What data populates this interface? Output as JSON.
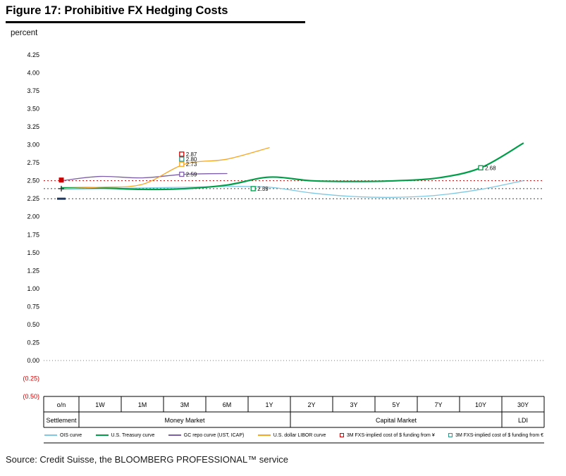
{
  "figure": {
    "source": "Source: Credit Suisse, the BLOOMBERG PROFESSIONAL™ service"
  },
  "chart_data": {
    "type": "line",
    "title": "Figure 17: Prohibitive FX Hedging Costs",
    "ylabel": "percent",
    "xlabel": "",
    "ylim": [
      -0.5,
      4.25
    ],
    "ytick_step": 0.25,
    "yticks": [
      "4.25",
      "4.00",
      "3.75",
      "3.50",
      "3.25",
      "3.00",
      "2.75",
      "2.50",
      "2.25",
      "2.00",
      "1.75",
      "1.50",
      "1.25",
      "1.00",
      "0.75",
      "0.50",
      "0.25",
      "0.00",
      "(0.25)",
      "(0.50)"
    ],
    "negative_tick_color": "#cc0000",
    "grid": "off",
    "legend_position": "bottom",
    "categories": [
      "o/n",
      "1W",
      "1M",
      "3M",
      "6M",
      "1Y",
      "2Y",
      "3Y",
      "5Y",
      "7Y",
      "10Y",
      "30Y"
    ],
    "category_groups": [
      {
        "label": "Settlement",
        "from": 0,
        "to": 0
      },
      {
        "label": "Money Market",
        "from": 1,
        "to": 5
      },
      {
        "label": "Capital Market",
        "from": 6,
        "to": 10
      },
      {
        "label": "LDI",
        "from": 11,
        "to": 11
      }
    ],
    "series": [
      {
        "name": "OIS curve",
        "color": "#7ec8e3",
        "width": 1.3,
        "values": [
          2.38,
          2.39,
          2.4,
          2.41,
          2.42,
          2.41,
          2.33,
          2.28,
          2.27,
          2.3,
          2.38,
          2.5
        ]
      },
      {
        "name": "U.S. Treasury curve",
        "color": "#009e49",
        "width": 2.2,
        "values": [
          2.4,
          2.4,
          2.38,
          2.39,
          2.44,
          2.55,
          2.5,
          2.49,
          2.5,
          2.54,
          2.68,
          3.02
        ]
      },
      {
        "name": "GC repo curve (UST, ICAP)",
        "color": "#7d5fa5",
        "width": 1.3,
        "values": [
          2.5,
          2.56,
          2.54,
          2.59,
          2.6,
          null,
          null,
          null,
          null,
          null,
          null,
          null
        ]
      },
      {
        "name": "U.S. dollar LIBOR curve",
        "color": "#f5a623",
        "width": 1.3,
        "values": [
          2.39,
          2.41,
          2.45,
          2.73,
          2.8,
          2.96,
          null,
          null,
          null,
          null,
          null,
          null
        ]
      }
    ],
    "reference_lines": [
      {
        "value": 2.5,
        "color": "#cc0000",
        "style": "dotted"
      },
      {
        "value": 2.39,
        "color": "#444444",
        "style": "dotted"
      },
      {
        "value": 2.25,
        "color": "#444444",
        "style": "dotted"
      }
    ],
    "point_markers": [
      {
        "label": "2.87",
        "value": 2.87,
        "x_index": 2.93,
        "color": "#cc0000"
      },
      {
        "label": "2.80",
        "value": 2.8,
        "x_index": 2.93,
        "color": "#2e9688"
      },
      {
        "label": "2.73",
        "value": 2.73,
        "x_index": 2.93,
        "color": "#f5a623"
      },
      {
        "label": "2.59",
        "value": 2.59,
        "x_index": 2.93,
        "color": "#7d5fa5"
      },
      {
        "label": "2.39",
        "value": 2.39,
        "x_index": 4.62,
        "color": "#009e49"
      },
      {
        "label": "2.68",
        "value": 2.68,
        "x_index": 10,
        "color": "#009e49"
      }
    ],
    "origin_markers": [
      {
        "value": 2.51,
        "color": "#cc0000",
        "shape": "square"
      },
      {
        "value": 2.39,
        "color": "#333333",
        "shape": "plus"
      },
      {
        "value": 2.25,
        "color": "#1f3864",
        "shape": "dash"
      }
    ],
    "legend": [
      {
        "type": "line",
        "color": "#7ec8e3",
        "label": "OIS curve"
      },
      {
        "type": "line",
        "color": "#009e49",
        "label": "U.S. Treasury curve"
      },
      {
        "type": "line",
        "color": "#7d5fa5",
        "label": "GC repo curve (UST, ICAP)"
      },
      {
        "type": "line",
        "color": "#f5a623",
        "label": "U.S. dollar LIBOR curve"
      },
      {
        "type": "square",
        "color": "#cc0000",
        "label": "3M FXS-implied cost of $ funding from ¥"
      },
      {
        "type": "square",
        "color": "#2e9688",
        "label": "3M FXS-implied cost of $ funding from €"
      }
    ]
  }
}
